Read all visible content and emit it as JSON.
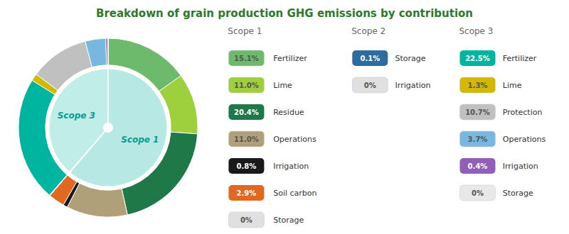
{
  "chart_data": {
    "type": "pie",
    "title": "Breakdown of grain production GHG emissions by contribution",
    "series": [
      {
        "name": "Scope 1",
        "categories": [
          "Fertilizer",
          "Lime",
          "Residue",
          "Operations",
          "Irrigation",
          "Soil carbon",
          "Storage"
        ],
        "values": [
          15.1,
          11.0,
          20.4,
          11.0,
          0.8,
          2.9,
          0.01
        ],
        "value_labels": [
          "15.1%",
          "11.0%",
          "20.4%",
          "11.0%",
          "0.8%",
          "2.9%",
          "0%"
        ],
        "colors": [
          "#6dba6d",
          "#9ecf3c",
          "#1e7848",
          "#b0a07a",
          "#1a1a1a",
          "#e06820",
          "#e0e0e0"
        ]
      },
      {
        "name": "Scope 2",
        "categories": [
          "Storage",
          "Irrigation"
        ],
        "values": [
          0.1,
          0.01
        ],
        "value_labels": [
          "0.1%",
          "0%"
        ],
        "colors": [
          "#2e6b9e",
          "#e0e0e0"
        ]
      },
      {
        "name": "Scope 3",
        "categories": [
          "Fertilizer",
          "Lime",
          "Protection",
          "Operations",
          "Irrigation",
          "Storage"
        ],
        "values": [
          22.5,
          1.3,
          10.7,
          3.7,
          0.4,
          0.01
        ],
        "value_labels": [
          "22.5%",
          "1.3%",
          "10.7%",
          "3.7%",
          "0.4%",
          "0%"
        ],
        "colors": [
          "#00b5a0",
          "#d4b800",
          "#c0c0c0",
          "#78b8e0",
          "#9060b8",
          "#e8e8e8"
        ]
      }
    ],
    "inner": {
      "categories": [
        "Scope 1",
        null,
        "Scope 3"
      ],
      "values": [
        61.2,
        0.1,
        38.6
      ],
      "colors": [
        "#b8e8e4",
        "#a8ddd8",
        "#c0ede8"
      ]
    }
  }
}
